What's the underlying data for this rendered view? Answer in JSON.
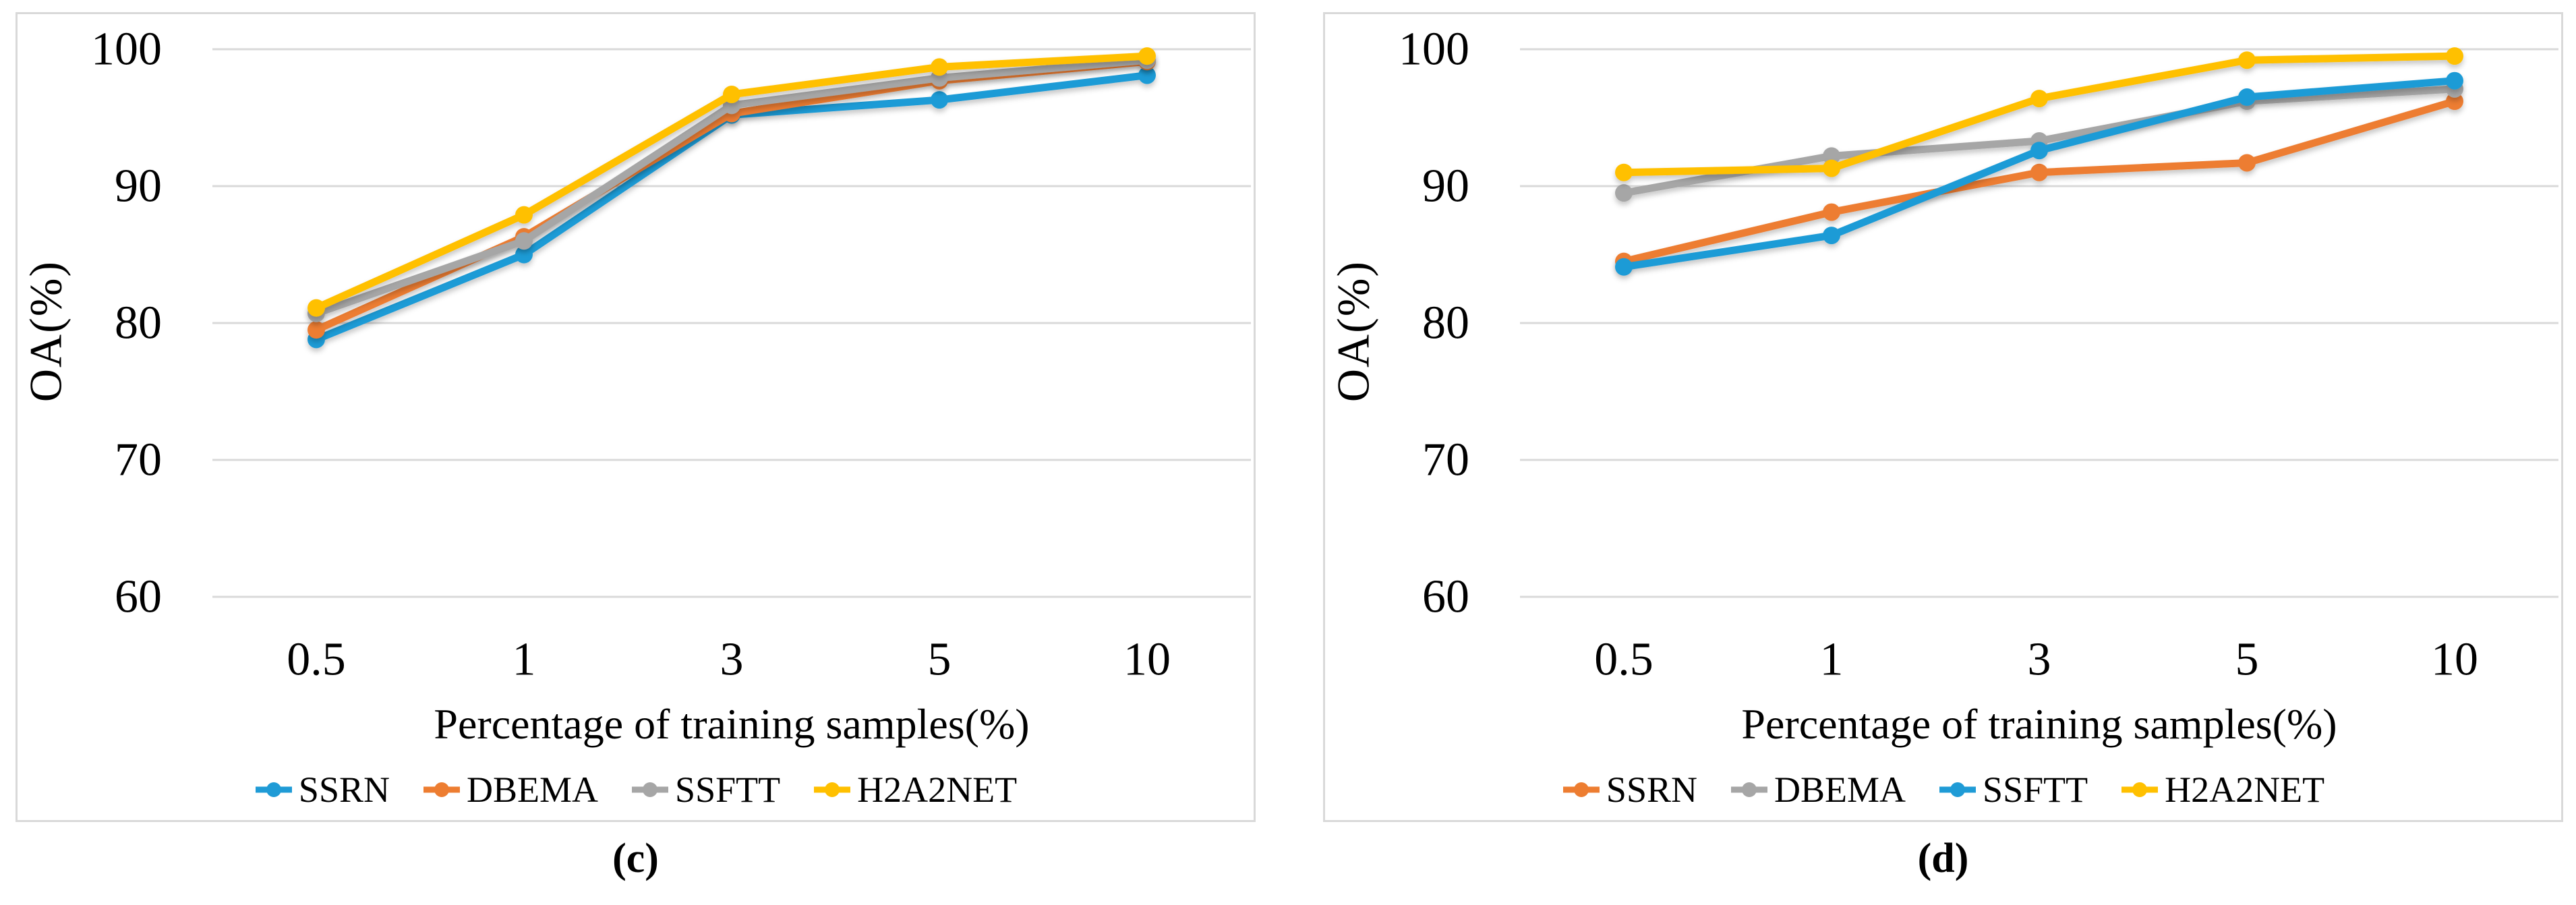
{
  "colors": {
    "blue": "#1F9BD6",
    "orange": "#ED7D31",
    "gray": "#A6A6A6",
    "yellow": "#FFC000",
    "gridline": "#D9D9D9",
    "panel_border": "#D9D9D9",
    "text": "#000000"
  },
  "charts": [
    {
      "caption": "(c)",
      "ylabel": "OA(%)",
      "xlabel": "Percentage of training samples(%)",
      "chart_data": {
        "type": "line",
        "categories": [
          "0.5",
          "1",
          "3",
          "5",
          "10"
        ],
        "ylim": [
          60,
          100
        ],
        "yticks": [
          60,
          70,
          80,
          90,
          100
        ],
        "grid": "horizontal",
        "legend_position": "bottom",
        "marker": "circle",
        "series": [
          {
            "name": "SSRN",
            "color": "#1F9BD6",
            "values": [
              78.8,
              85.0,
              95.2,
              96.3,
              98.1
            ]
          },
          {
            "name": "DBEMA",
            "color": "#ED7D31",
            "values": [
              79.5,
              86.3,
              95.3,
              97.7,
              99.1
            ]
          },
          {
            "name": "SSFTT",
            "color": "#A6A6A6",
            "values": [
              80.7,
              86.0,
              95.9,
              97.9,
              99.2
            ]
          },
          {
            "name": "H2A2NET",
            "color": "#FFC000",
            "values": [
              81.1,
              87.9,
              96.7,
              98.7,
              99.5
            ]
          }
        ]
      }
    },
    {
      "caption": "(d)",
      "ylabel": "OA(%)",
      "xlabel": "Percentage of training samples(%)",
      "chart_data": {
        "type": "line",
        "categories": [
          "0.5",
          "1",
          "3",
          "5",
          "10"
        ],
        "ylim": [
          60,
          100
        ],
        "yticks": [
          60,
          70,
          80,
          90,
          100
        ],
        "grid": "horizontal",
        "legend_position": "bottom",
        "marker": "circle",
        "series": [
          {
            "name": "SSRN",
            "color": "#ED7D31",
            "values": [
              84.5,
              88.1,
              91.0,
              91.7,
              96.2
            ]
          },
          {
            "name": "DBEMA",
            "color": "#A6A6A6",
            "values": [
              89.5,
              92.2,
              93.3,
              96.2,
              97.1
            ]
          },
          {
            "name": "SSFTT",
            "color": "#1F9BD6",
            "values": [
              84.1,
              86.4,
              92.6,
              96.5,
              97.7
            ]
          },
          {
            "name": "H2A2NET",
            "color": "#FFC000",
            "values": [
              91.0,
              91.3,
              96.4,
              99.2,
              99.5
            ]
          }
        ]
      }
    }
  ]
}
